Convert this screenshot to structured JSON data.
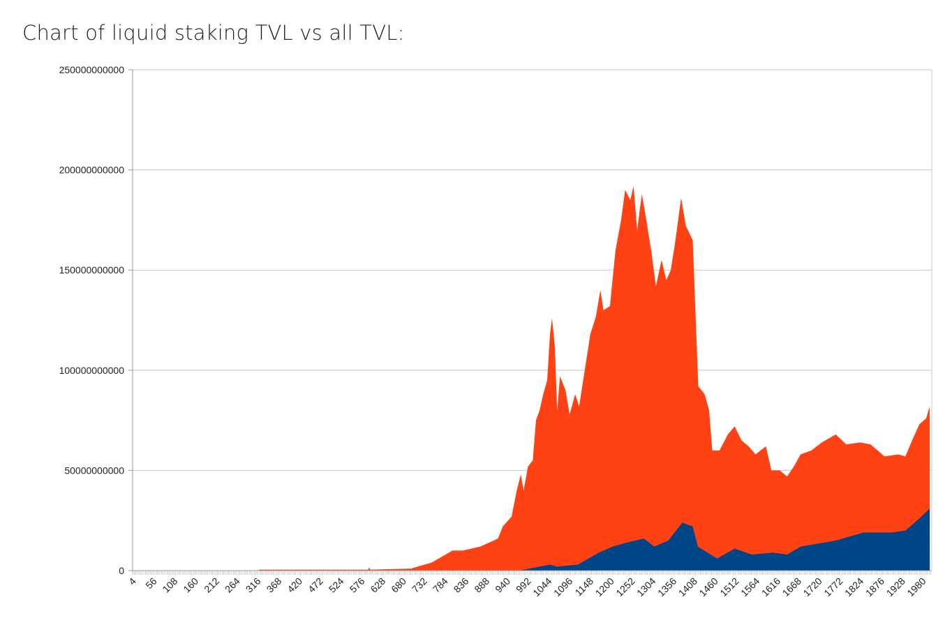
{
  "title": "Chart of liquid staking TVL vs all TVL:",
  "chart_data": {
    "type": "area",
    "title": "",
    "xlabel": "",
    "ylabel": "",
    "ylim": [
      0,
      250000000000
    ],
    "xlim": [
      1,
      2000
    ],
    "grid": "horizontal",
    "legend": "none",
    "yticks": [
      "0",
      "50000000000",
      "100000000000",
      "150000000000",
      "200000000000",
      "250000000000"
    ],
    "xticks": [
      "4",
      "56",
      "108",
      "160",
      "212",
      "264",
      "316",
      "368",
      "420",
      "472",
      "524",
      "576",
      "628",
      "680",
      "732",
      "784",
      "836",
      "888",
      "940",
      "992",
      "1044",
      "1096",
      "1148",
      "1200",
      "1252",
      "1304",
      "1356",
      "1408",
      "1460",
      "1512",
      "1564",
      "1616",
      "1668",
      "1720",
      "1772",
      "1824",
      "1876",
      "1928",
      "1980"
    ],
    "colors": {
      "all_tvl": "#ff4213",
      "liquid_staking_tvl": "#004586",
      "grid": "#c8c8c8"
    },
    "series": [
      {
        "key": "all_tvl",
        "x": [
          1,
          316,
          317,
          590,
          592,
          596,
          697,
          714,
          749,
          784,
          801,
          827,
          871,
          915,
          927,
          949,
          962,
          972,
          979,
          990,
          1002,
          1010,
          1019,
          1028,
          1038,
          1045,
          1050,
          1057,
          1063,
          1070,
          1084,
          1094,
          1108,
          1118,
          1132,
          1146,
          1160,
          1171,
          1179,
          1195,
          1209,
          1223,
          1233,
          1246,
          1254,
          1263,
          1275,
          1286,
          1298,
          1310,
          1324,
          1336,
          1347,
          1359,
          1373,
          1385,
          1402,
          1416,
          1432,
          1443,
          1451,
          1469,
          1490,
          1507,
          1524,
          1542,
          1559,
          1585,
          1599,
          1620,
          1638,
          1655,
          1672,
          1699,
          1725,
          1760,
          1786,
          1821,
          1847,
          1882,
          1916,
          1934,
          1951,
          1969,
          1986,
          1995
        ],
        "y": [
          0,
          0,
          500000000,
          500000000,
          1500000000,
          500000000,
          1000000000,
          2000000000,
          4000000000,
          8000000000,
          10000000000,
          10000000000,
          12000000000,
          16000000000,
          22000000000,
          27000000000,
          40000000000,
          48000000000,
          40000000000,
          52000000000,
          55000000000,
          75000000000,
          80000000000,
          88000000000,
          95000000000,
          118000000000,
          126000000000,
          112000000000,
          80000000000,
          97000000000,
          90000000000,
          78000000000,
          88000000000,
          82000000000,
          100000000000,
          118000000000,
          127000000000,
          140000000000,
          130000000000,
          132000000000,
          160000000000,
          175000000000,
          190000000000,
          185000000000,
          192000000000,
          170000000000,
          188000000000,
          175000000000,
          160000000000,
          142000000000,
          155000000000,
          145000000000,
          150000000000,
          165000000000,
          186000000000,
          172000000000,
          165000000000,
          92000000000,
          88000000000,
          80000000000,
          60000000000,
          60000000000,
          68000000000,
          72000000000,
          65000000000,
          62000000000,
          58000000000,
          62000000000,
          50000000000,
          50000000000,
          47000000000,
          52000000000,
          58000000000,
          60000000000,
          64000000000,
          68000000000,
          63000000000,
          64000000000,
          63000000000,
          57000000000,
          58000000000,
          57000000000,
          65000000000,
          73000000000,
          76000000000,
          82000000000
        ]
      },
      {
        "key": "liquid_staking_tvl",
        "x": [
          1,
          967,
          993,
          1045,
          1063,
          1115,
          1141,
          1167,
          1202,
          1237,
          1280,
          1306,
          1341,
          1376,
          1402,
          1415,
          1463,
          1507,
          1550,
          1603,
          1638,
          1672,
          1760,
          1829,
          1899,
          1934,
          1969,
          1995
        ],
        "y": [
          0,
          0,
          1000000000,
          3000000000,
          2000000000,
          3000000000,
          6000000000,
          9000000000,
          12000000000,
          14000000000,
          16000000000,
          12000000000,
          15000000000,
          24000000000,
          22000000000,
          12000000000,
          6000000000,
          11000000000,
          8000000000,
          9000000000,
          8000000000,
          12000000000,
          15000000000,
          19000000000,
          19000000000,
          20000000000,
          26000000000,
          31000000000
        ]
      }
    ]
  }
}
